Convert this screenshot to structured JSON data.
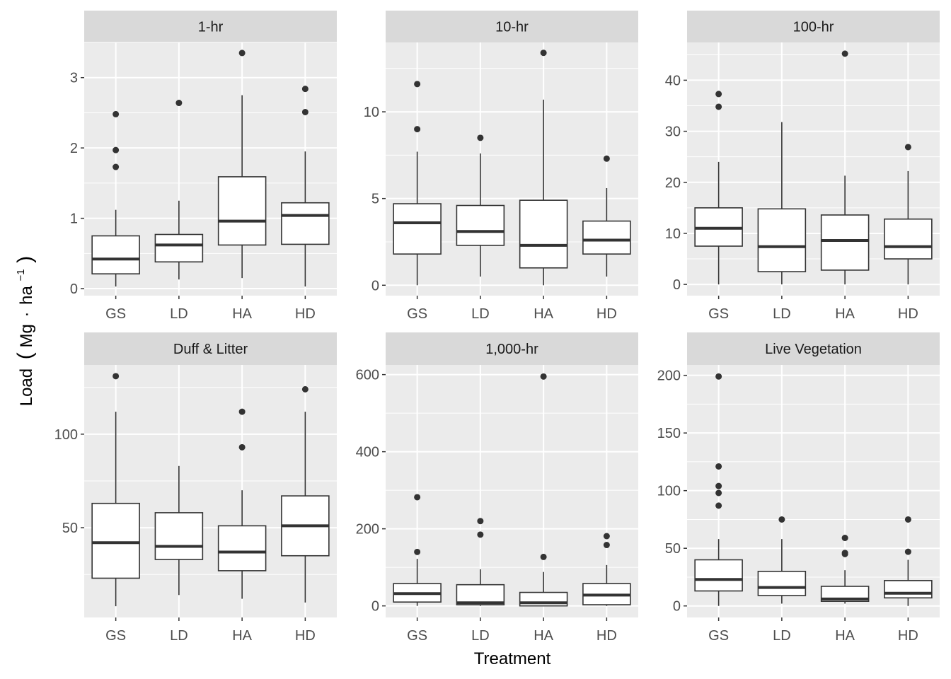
{
  "chart_data": {
    "type": "boxplot",
    "layout": "facet grid, 2 rows x 3 columns, free y scales",
    "xlabel": "Treatment",
    "ylabel": "Load (Mg · ha⁻¹)",
    "ylabel_parts": {
      "main": "Load",
      "open": "(",
      "unit1": "Mg",
      "dot": "·",
      "unit2": "ha",
      "exp": "−1",
      "close": ")"
    },
    "categories": [
      "GS",
      "LD",
      "HA",
      "HD"
    ],
    "colors": {
      "panel_bg": "#ebebeb",
      "strip_bg": "#d9d9d9",
      "grid": "#ffffff",
      "box_fill": "#ffffff",
      "box_line": "#333333",
      "tick_text": "#4d4d4d"
    },
    "panels": [
      {
        "title": "1-hr",
        "ylim": [
          -0.1,
          3.5
        ],
        "yticks": [
          0,
          1,
          2,
          3
        ],
        "boxes": [
          {
            "group": "GS",
            "min": 0.03,
            "q1": 0.21,
            "median": 0.42,
            "q3": 0.75,
            "max": 1.12,
            "outliers": [
              1.73,
              1.97,
              2.48
            ]
          },
          {
            "group": "LD",
            "min": 0.13,
            "q1": 0.38,
            "median": 0.62,
            "q3": 0.77,
            "max": 1.25,
            "outliers": [
              2.64
            ]
          },
          {
            "group": "HA",
            "min": 0.15,
            "q1": 0.62,
            "median": 0.96,
            "q3": 1.59,
            "max": 2.75,
            "outliers": [
              3.35
            ]
          },
          {
            "group": "HD",
            "min": 0.03,
            "q1": 0.63,
            "median": 1.04,
            "q3": 1.22,
            "max": 1.95,
            "outliers": [
              2.51,
              2.84
            ]
          }
        ]
      },
      {
        "title": "10-hr",
        "ylim": [
          -0.6,
          14.0
        ],
        "yticks": [
          0,
          5,
          10
        ],
        "boxes": [
          {
            "group": "GS",
            "min": 0.0,
            "q1": 1.8,
            "median": 3.6,
            "q3": 4.7,
            "max": 7.7,
            "outliers": [
              9.0,
              11.6
            ]
          },
          {
            "group": "LD",
            "min": 0.5,
            "q1": 2.3,
            "median": 3.1,
            "q3": 4.6,
            "max": 7.6,
            "outliers": [
              8.5
            ]
          },
          {
            "group": "HA",
            "min": 0.0,
            "q1": 1.0,
            "median": 2.3,
            "q3": 4.9,
            "max": 10.7,
            "outliers": [
              13.4
            ]
          },
          {
            "group": "HD",
            "min": 0.5,
            "q1": 1.8,
            "median": 2.6,
            "q3": 3.7,
            "max": 5.6,
            "outliers": [
              7.3
            ]
          }
        ]
      },
      {
        "title": "100-hr",
        "ylim": [
          -2.2,
          47.4
        ],
        "yticks": [
          0,
          10,
          20,
          30,
          40
        ],
        "boxes": [
          {
            "group": "GS",
            "min": 0.0,
            "q1": 7.5,
            "median": 11.0,
            "q3": 15.0,
            "max": 24.0,
            "outliers": [
              34.8,
              37.3
            ]
          },
          {
            "group": "LD",
            "min": 0.0,
            "q1": 2.5,
            "median": 7.4,
            "q3": 14.8,
            "max": 31.8,
            "outliers": []
          },
          {
            "group": "HA",
            "min": 0.0,
            "q1": 2.8,
            "median": 8.6,
            "q3": 13.6,
            "max": 21.3,
            "outliers": [
              45.2
            ]
          },
          {
            "group": "HD",
            "min": 0.0,
            "q1": 5.0,
            "median": 7.4,
            "q3": 12.8,
            "max": 22.2,
            "outliers": [
              26.9
            ]
          }
        ]
      },
      {
        "title": "Duff & Litter",
        "ylim": [
          2,
          137
        ],
        "yticks": [
          50,
          100
        ],
        "boxes": [
          {
            "group": "GS",
            "min": 8,
            "q1": 23,
            "median": 42,
            "q3": 63,
            "max": 112,
            "outliers": [
              131
            ]
          },
          {
            "group": "LD",
            "min": 14,
            "q1": 33,
            "median": 40,
            "q3": 58,
            "max": 83,
            "outliers": []
          },
          {
            "group": "HA",
            "min": 12,
            "q1": 27,
            "median": 37,
            "q3": 51,
            "max": 70,
            "outliers": [
              93,
              112
            ]
          },
          {
            "group": "HD",
            "min": 10,
            "q1": 35,
            "median": 51,
            "q3": 67,
            "max": 112,
            "outliers": [
              124
            ]
          }
        ]
      },
      {
        "title": "1,000-hr",
        "ylim": [
          -30,
          625
        ],
        "yticks": [
          0,
          200,
          400,
          600
        ],
        "boxes": [
          {
            "group": "GS",
            "min": 0,
            "q1": 10,
            "median": 32,
            "q3": 58,
            "max": 122,
            "outliers": [
              140,
              282
            ]
          },
          {
            "group": "LD",
            "min": 0,
            "q1": 3,
            "median": 8,
            "q3": 55,
            "max": 95,
            "outliers": [
              185,
              220
            ]
          },
          {
            "group": "HA",
            "min": 0,
            "q1": 0,
            "median": 8,
            "q3": 35,
            "max": 88,
            "outliers": [
              127,
              595
            ]
          },
          {
            "group": "HD",
            "min": 0,
            "q1": 3,
            "median": 28,
            "q3": 58,
            "max": 106,
            "outliers": [
              158,
              181
            ]
          }
        ]
      },
      {
        "title": "Live Vegetation",
        "ylim": [
          -10,
          209
        ],
        "yticks": [
          0,
          50,
          100,
          150,
          200
        ],
        "boxes": [
          {
            "group": "GS",
            "min": 0,
            "q1": 13,
            "median": 23,
            "q3": 40,
            "max": 58,
            "outliers": [
              87,
              98,
              104,
              121,
              199
            ]
          },
          {
            "group": "LD",
            "min": 2,
            "q1": 9,
            "median": 16,
            "q3": 30,
            "max": 58,
            "outliers": [
              75
            ]
          },
          {
            "group": "HA",
            "min": 2,
            "q1": 4,
            "median": 6,
            "q3": 17,
            "max": 31,
            "outliers": [
              45,
              46,
              59
            ]
          },
          {
            "group": "HD",
            "min": 0,
            "q1": 7,
            "median": 11,
            "q3": 22,
            "max": 40,
            "outliers": [
              47,
              75
            ]
          }
        ]
      }
    ]
  }
}
